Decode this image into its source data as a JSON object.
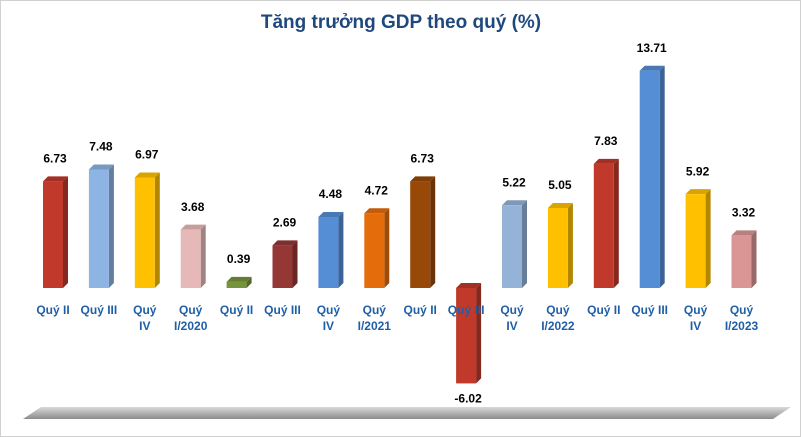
{
  "chart_data": {
    "type": "bar",
    "title": "Tăng trưởng GDP theo quý (%)",
    "categories": [
      "Quý II",
      "Quý III",
      "Quý\nIV",
      "Quý\nI/2020",
      "Quý II",
      "Quý III",
      "Quý\nIV",
      "Quý\nI/2021",
      "Quý II",
      "Quý III",
      "Quý\nIV",
      "Quý\nI/2022",
      "Quý II",
      "Quý III",
      "Quý\nIV",
      "Quý\nI/2023"
    ],
    "values": [
      6.73,
      7.48,
      6.97,
      3.68,
      0.39,
      2.69,
      4.48,
      4.72,
      6.73,
      -6.02,
      5.22,
      5.05,
      7.83,
      13.71,
      5.92,
      3.32
    ],
    "colors": [
      "#c0392b",
      "#8eb4e3",
      "#ffc000",
      "#e6b9b8",
      "#77933c",
      "#953735",
      "#558ed5",
      "#e46c0a",
      "#984807",
      "#c0392b",
      "#95b3d7",
      "#ffc000",
      "#c0392b",
      "#558ed5",
      "#ffc000",
      "#d99694"
    ]
  }
}
